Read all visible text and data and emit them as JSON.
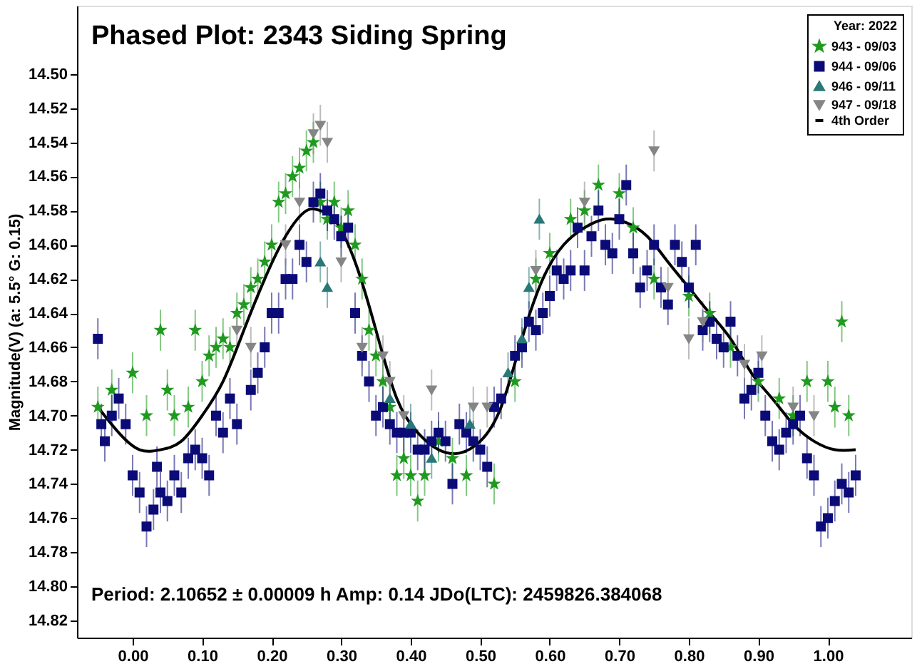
{
  "chart_data": {
    "type": "scatter",
    "title": "Phased Plot:  2343 Siding Spring",
    "ylabel": "Magnitude(V)  (a: 5.5° G: 0.15)",
    "legend_title": "Year: 2022",
    "legend": "top right",
    "grid": false,
    "annotations": [
      "Period: 2.10652 ± 0.00009 h  Amp: 0.14     JDo(LTC): 2459826.384068"
    ],
    "xlim": [
      -0.08,
      1.12
    ],
    "xticks": [
      {
        "value": 0,
        "label": "0.00"
      },
      {
        "value": 0.1,
        "label": "0.10"
      },
      {
        "value": 0.2,
        "label": "0.20"
      },
      {
        "value": 0.3,
        "label": "0.30"
      },
      {
        "value": 0.4,
        "label": "0.40"
      },
      {
        "value": 0.5,
        "label": "0.50"
      },
      {
        "value": 0.6,
        "label": "0.60"
      },
      {
        "value": 0.7,
        "label": "0.70"
      },
      {
        "value": 0.8,
        "label": "0.80"
      },
      {
        "value": 0.9,
        "label": "0.90"
      },
      {
        "value": 1,
        "label": "1.00"
      }
    ],
    "ylim": [
      14.83,
      14.46
    ],
    "yticks": [
      {
        "value": 14.5,
        "label": "14.50"
      },
      {
        "value": 14.52,
        "label": "14.52"
      },
      {
        "value": 14.54,
        "label": "14.54"
      },
      {
        "value": 14.56,
        "label": "14.56"
      },
      {
        "value": 14.58,
        "label": "14.58"
      },
      {
        "value": 14.6,
        "label": "14.60"
      },
      {
        "value": 14.62,
        "label": "14.62"
      },
      {
        "value": 14.64,
        "label": "14.64"
      },
      {
        "value": 14.66,
        "label": "14.66"
      },
      {
        "value": 14.68,
        "label": "14.68"
      },
      {
        "value": 14.7,
        "label": "14.70"
      },
      {
        "value": 14.72,
        "label": "14.72"
      },
      {
        "value": 14.74,
        "label": "14.74"
      },
      {
        "value": 14.76,
        "label": "14.76"
      },
      {
        "value": 14.78,
        "label": "14.78"
      },
      {
        "value": 14.8,
        "label": "14.80"
      },
      {
        "value": 14.82,
        "label": "14.82"
      }
    ],
    "series": [
      {
        "name": "943 - 09/03",
        "color": "#1f9a1f",
        "marker": "star",
        "x": [
          -0.05,
          -0.03,
          0.0,
          0.02,
          0.04,
          0.05,
          0.06,
          0.08,
          0.09,
          0.1,
          0.11,
          0.12,
          0.13,
          0.14,
          0.15,
          0.16,
          0.17,
          0.18,
          0.19,
          0.2,
          0.21,
          0.22,
          0.23,
          0.24,
          0.25,
          0.26,
          0.27,
          0.28,
          0.29,
          0.3,
          0.31,
          0.32,
          0.33,
          0.34,
          0.35,
          0.36,
          0.37,
          0.38,
          0.39,
          0.4,
          0.41,
          0.42,
          0.44,
          0.46,
          0.48,
          0.52,
          0.55,
          0.58,
          0.6,
          0.63,
          0.65,
          0.67,
          0.7,
          0.72,
          0.75,
          0.8,
          0.83,
          0.86,
          0.9,
          0.93,
          0.95,
          0.97,
          1.0,
          1.01,
          1.02,
          1.03
        ],
        "values": [
          14.695,
          14.685,
          14.675,
          14.7,
          14.65,
          14.685,
          14.7,
          14.695,
          14.65,
          14.68,
          14.665,
          14.66,
          14.655,
          14.66,
          14.64,
          14.635,
          14.625,
          14.62,
          14.61,
          14.6,
          14.575,
          14.57,
          14.56,
          14.555,
          14.545,
          14.54,
          14.575,
          14.585,
          14.575,
          14.59,
          14.58,
          14.6,
          14.62,
          14.65,
          14.665,
          14.68,
          14.695,
          14.735,
          14.725,
          14.735,
          14.75,
          14.735,
          14.715,
          14.725,
          14.735,
          14.74,
          14.68,
          14.62,
          14.605,
          14.585,
          14.58,
          14.565,
          14.57,
          14.59,
          14.62,
          14.63,
          14.64,
          14.66,
          14.68,
          14.69,
          14.7,
          14.68,
          14.68,
          14.695,
          14.645,
          14.7
        ],
        "errors": [
          0.012,
          0.012,
          0.012,
          0.012,
          0.012,
          0.012,
          0.012,
          0.012,
          0.012,
          0.012,
          0.012,
          0.012,
          0.012,
          0.012,
          0.012,
          0.012,
          0.012,
          0.012,
          0.012,
          0.012,
          0.012,
          0.012,
          0.012,
          0.012,
          0.012,
          0.012,
          0.012,
          0.012,
          0.012,
          0.012,
          0.012,
          0.012,
          0.012,
          0.012,
          0.012,
          0.012,
          0.012,
          0.012,
          0.012,
          0.012,
          0.012,
          0.012,
          0.012,
          0.012,
          0.012,
          0.012,
          0.012,
          0.012,
          0.012,
          0.012,
          0.012,
          0.012,
          0.012,
          0.012,
          0.012,
          0.012,
          0.012,
          0.012,
          0.012,
          0.012,
          0.012,
          0.012,
          0.012,
          0.012,
          0.012,
          0.012
        ]
      },
      {
        "name": "944 - 09/06",
        "color": "#0b0b78",
        "marker": "square",
        "x": [
          -0.05,
          -0.045,
          -0.04,
          -0.03,
          -0.02,
          -0.01,
          0.0,
          0.01,
          0.02,
          0.03,
          0.035,
          0.04,
          0.05,
          0.06,
          0.07,
          0.08,
          0.09,
          0.1,
          0.11,
          0.12,
          0.13,
          0.14,
          0.15,
          0.17,
          0.18,
          0.19,
          0.2,
          0.21,
          0.22,
          0.23,
          0.24,
          0.25,
          0.26,
          0.27,
          0.28,
          0.29,
          0.3,
          0.31,
          0.32,
          0.33,
          0.34,
          0.35,
          0.36,
          0.37,
          0.38,
          0.39,
          0.4,
          0.41,
          0.42,
          0.43,
          0.44,
          0.45,
          0.46,
          0.47,
          0.48,
          0.49,
          0.5,
          0.51,
          0.52,
          0.53,
          0.55,
          0.56,
          0.57,
          0.58,
          0.59,
          0.6,
          0.61,
          0.62,
          0.63,
          0.64,
          0.65,
          0.66,
          0.67,
          0.68,
          0.69,
          0.7,
          0.71,
          0.72,
          0.73,
          0.74,
          0.75,
          0.76,
          0.77,
          0.78,
          0.79,
          0.8,
          0.81,
          0.82,
          0.83,
          0.84,
          0.85,
          0.86,
          0.87,
          0.88,
          0.89,
          0.9,
          0.91,
          0.92,
          0.93,
          0.94,
          0.95,
          0.96,
          0.97,
          0.98,
          0.99,
          1.0,
          1.01,
          1.02,
          1.03,
          1.04
        ],
        "values": [
          14.655,
          14.705,
          14.715,
          14.7,
          14.69,
          14.705,
          14.735,
          14.745,
          14.765,
          14.755,
          14.73,
          14.745,
          14.75,
          14.735,
          14.745,
          14.725,
          14.72,
          14.725,
          14.735,
          14.7,
          14.71,
          14.69,
          14.705,
          14.685,
          14.675,
          14.66,
          14.64,
          14.64,
          14.62,
          14.62,
          14.6,
          14.61,
          14.575,
          14.57,
          14.58,
          14.585,
          14.595,
          14.59,
          14.64,
          14.665,
          14.68,
          14.7,
          14.695,
          14.705,
          14.71,
          14.71,
          14.71,
          14.72,
          14.72,
          14.715,
          14.71,
          14.715,
          14.74,
          14.705,
          14.71,
          14.715,
          14.72,
          14.73,
          14.695,
          14.69,
          14.665,
          14.66,
          14.645,
          14.65,
          14.64,
          14.63,
          14.615,
          14.62,
          14.615,
          14.59,
          14.615,
          14.595,
          14.58,
          14.6,
          14.605,
          14.585,
          14.565,
          14.605,
          14.625,
          14.615,
          14.6,
          14.625,
          14.635,
          14.6,
          14.61,
          14.625,
          14.6,
          14.65,
          14.645,
          14.655,
          14.66,
          14.645,
          14.665,
          14.69,
          14.685,
          14.675,
          14.7,
          14.715,
          14.72,
          14.71,
          14.705,
          14.7,
          14.725,
          14.735,
          14.765,
          14.76,
          14.75,
          14.74,
          14.745,
          14.735
        ],
        "errors": [
          0.012,
          0.012,
          0.012,
          0.012,
          0.012,
          0.012,
          0.012,
          0.012,
          0.012,
          0.012,
          0.012,
          0.012,
          0.012,
          0.012,
          0.012,
          0.012,
          0.012,
          0.012,
          0.012,
          0.012,
          0.012,
          0.012,
          0.012,
          0.012,
          0.012,
          0.012,
          0.012,
          0.012,
          0.012,
          0.012,
          0.012,
          0.012,
          0.012,
          0.012,
          0.012,
          0.012,
          0.012,
          0.012,
          0.012,
          0.012,
          0.012,
          0.012,
          0.012,
          0.012,
          0.012,
          0.012,
          0.012,
          0.012,
          0.012,
          0.012,
          0.012,
          0.012,
          0.012,
          0.012,
          0.012,
          0.012,
          0.012,
          0.012,
          0.012,
          0.012,
          0.012,
          0.012,
          0.012,
          0.012,
          0.012,
          0.012,
          0.012,
          0.012,
          0.012,
          0.012,
          0.012,
          0.012,
          0.012,
          0.012,
          0.012,
          0.012,
          0.012,
          0.012,
          0.012,
          0.012,
          0.012,
          0.012,
          0.012,
          0.012,
          0.012,
          0.012,
          0.012,
          0.012,
          0.012,
          0.012,
          0.012,
          0.012,
          0.012,
          0.012,
          0.012,
          0.012,
          0.012,
          0.012,
          0.012,
          0.012,
          0.012,
          0.012,
          0.012,
          0.012,
          0.012,
          0.012,
          0.012,
          0.012,
          0.012,
          0.012
        ]
      },
      {
        "name": "946 - 09/11",
        "color": "#2a7878",
        "marker": "triangle",
        "x": [
          0.27,
          0.28,
          0.37,
          0.4,
          0.43,
          0.485,
          0.54,
          0.56,
          0.57,
          0.585
        ],
        "values": [
          14.61,
          14.625,
          14.69,
          14.705,
          14.725,
          14.705,
          14.675,
          14.655,
          14.625,
          14.585
        ],
        "errors": [
          0.012,
          0.012,
          0.012,
          0.012,
          0.012,
          0.012,
          0.012,
          0.012,
          0.012,
          0.012
        ]
      },
      {
        "name": "947 - 09/18",
        "color": "#858585",
        "marker": "triangle-down",
        "x": [
          0.15,
          0.17,
          0.22,
          0.24,
          0.26,
          0.27,
          0.28,
          0.3,
          0.33,
          0.36,
          0.37,
          0.39,
          0.43,
          0.49,
          0.51,
          0.58,
          0.65,
          0.75,
          0.77,
          0.8,
          0.82,
          0.88,
          0.905,
          0.95,
          0.98
        ],
        "values": [
          14.65,
          14.66,
          14.6,
          14.575,
          14.535,
          14.53,
          14.54,
          14.61,
          14.66,
          14.665,
          14.68,
          14.7,
          14.685,
          14.695,
          14.695,
          14.615,
          14.575,
          14.545,
          14.625,
          14.655,
          14.645,
          14.67,
          14.665,
          14.695,
          14.7
        ],
        "errors": [
          0.012,
          0.012,
          0.012,
          0.012,
          0.012,
          0.012,
          0.012,
          0.012,
          0.012,
          0.012,
          0.012,
          0.012,
          0.012,
          0.012,
          0.012,
          0.012,
          0.012,
          0.012,
          0.012,
          0.012,
          0.012,
          0.012,
          0.012,
          0.012,
          0.012
        ]
      },
      {
        "name": "4th Order",
        "type": "line",
        "color": "#000000",
        "marker": "none",
        "line_style": "solid",
        "x": [
          -0.05,
          -0.02,
          0.01,
          0.04,
          0.07,
          0.1,
          0.13,
          0.16,
          0.19,
          0.22,
          0.25,
          0.27,
          0.29,
          0.32,
          0.35,
          0.38,
          0.41,
          0.44,
          0.47,
          0.5,
          0.53,
          0.56,
          0.59,
          0.62,
          0.65,
          0.68,
          0.71,
          0.74,
          0.77,
          0.8,
          0.83,
          0.86,
          0.89,
          0.92,
          0.95,
          0.98,
          1.01,
          1.04
        ],
        "values": [
          14.695,
          14.71,
          14.72,
          14.72,
          14.715,
          14.7,
          14.68,
          14.65,
          14.62,
          14.595,
          14.58,
          14.58,
          14.585,
          14.61,
          14.65,
          14.69,
          14.71,
          14.72,
          14.722,
          14.715,
          14.695,
          14.655,
          14.62,
          14.6,
          14.59,
          14.585,
          14.587,
          14.595,
          14.61,
          14.625,
          14.64,
          14.655,
          14.675,
          14.69,
          14.705,
          14.715,
          14.72,
          14.72
        ]
      }
    ]
  }
}
